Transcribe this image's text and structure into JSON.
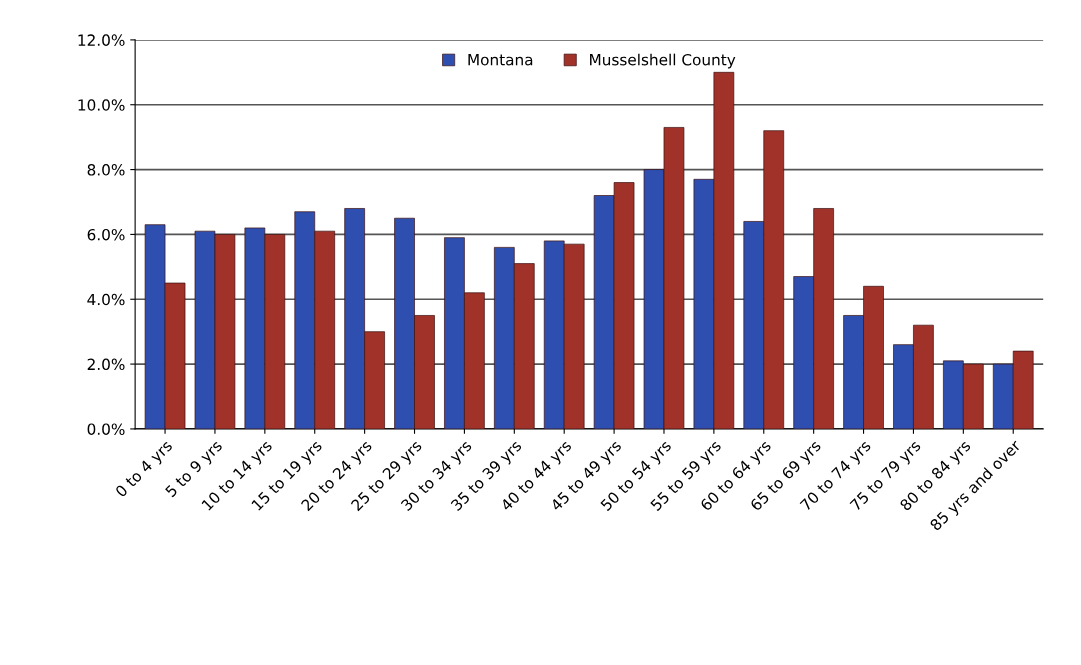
{
  "chart_data": {
    "type": "bar",
    "categories": [
      "0 to 4 yrs",
      "5 to 9 yrs",
      "10 to 14 yrs",
      "15 to 19 yrs",
      "20 to 24 yrs",
      "25 to 29 yrs",
      "30 to 34 yrs",
      "35 to 39 yrs",
      "40 to 44 yrs",
      "45 to 49 yrs",
      "50 to 54 yrs",
      "55 to 59 yrs",
      "60 to 64 yrs",
      "65 to 69 yrs",
      "70 to 74 yrs",
      "75 to 79 yrs",
      "80 to 84 yrs",
      "85 yrs and over"
    ],
    "series": [
      {
        "name": "Montana",
        "color": "#2f4fb0",
        "values": [
          6.3,
          6.1,
          6.2,
          6.7,
          6.8,
          6.5,
          5.9,
          5.6,
          5.8,
          7.2,
          8.0,
          7.7,
          6.4,
          4.7,
          3.5,
          2.6,
          2.1,
          2.0
        ]
      },
      {
        "name": "Musselshell County",
        "color": "#a0322a",
        "values": [
          4.5,
          6.0,
          6.0,
          6.1,
          3.0,
          3.5,
          4.2,
          5.1,
          5.7,
          7.6,
          9.3,
          11.0,
          9.2,
          6.8,
          4.4,
          3.2,
          2.0,
          2.4
        ]
      }
    ],
    "ylim": [
      0,
      12
    ],
    "yticks": [
      {
        "value": 0,
        "label": "0.0%"
      },
      {
        "value": 2,
        "label": "2.0%"
      },
      {
        "value": 4,
        "label": "4.0%"
      },
      {
        "value": 6,
        "label": "6.0%"
      },
      {
        "value": 8,
        "label": "8.0%"
      },
      {
        "value": 10,
        "label": "10.0%"
      },
      {
        "value": 12,
        "label": "12.0%"
      }
    ],
    "grid": "y",
    "legend": "top"
  }
}
